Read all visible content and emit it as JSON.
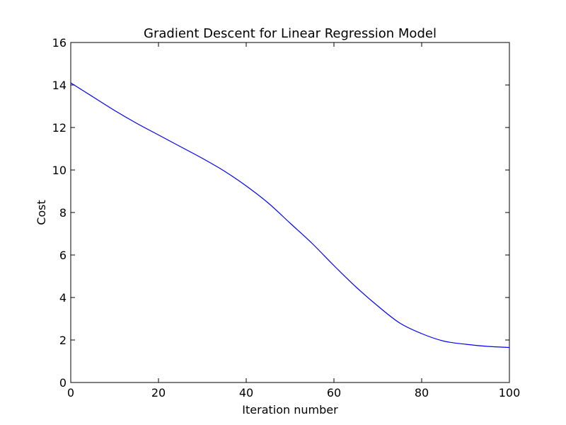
{
  "chart_data": {
    "type": "line",
    "title": "Gradient Descent for Linear Regression Model",
    "xlabel": "Iteration number",
    "ylabel": "Cost",
    "xlim": [
      0,
      100
    ],
    "ylim": [
      0,
      16
    ],
    "xticks": [
      0,
      20,
      40,
      60,
      80,
      100
    ],
    "yticks": [
      0,
      2,
      4,
      6,
      8,
      10,
      12,
      14,
      16
    ],
    "grid": false,
    "line_color": "#0000ff",
    "series": [
      {
        "x": [
          0,
          5,
          10,
          15,
          20,
          25,
          30,
          35,
          40,
          45,
          50,
          55,
          60,
          65,
          70,
          75,
          80,
          85,
          90,
          95,
          100
        ],
        "values": [
          14.1,
          13.45,
          12.8,
          12.2,
          11.65,
          11.1,
          10.55,
          9.95,
          9.25,
          8.45,
          7.5,
          6.55,
          5.5,
          4.5,
          3.6,
          2.8,
          2.3,
          1.95,
          1.8,
          1.7,
          1.65
        ]
      }
    ]
  }
}
